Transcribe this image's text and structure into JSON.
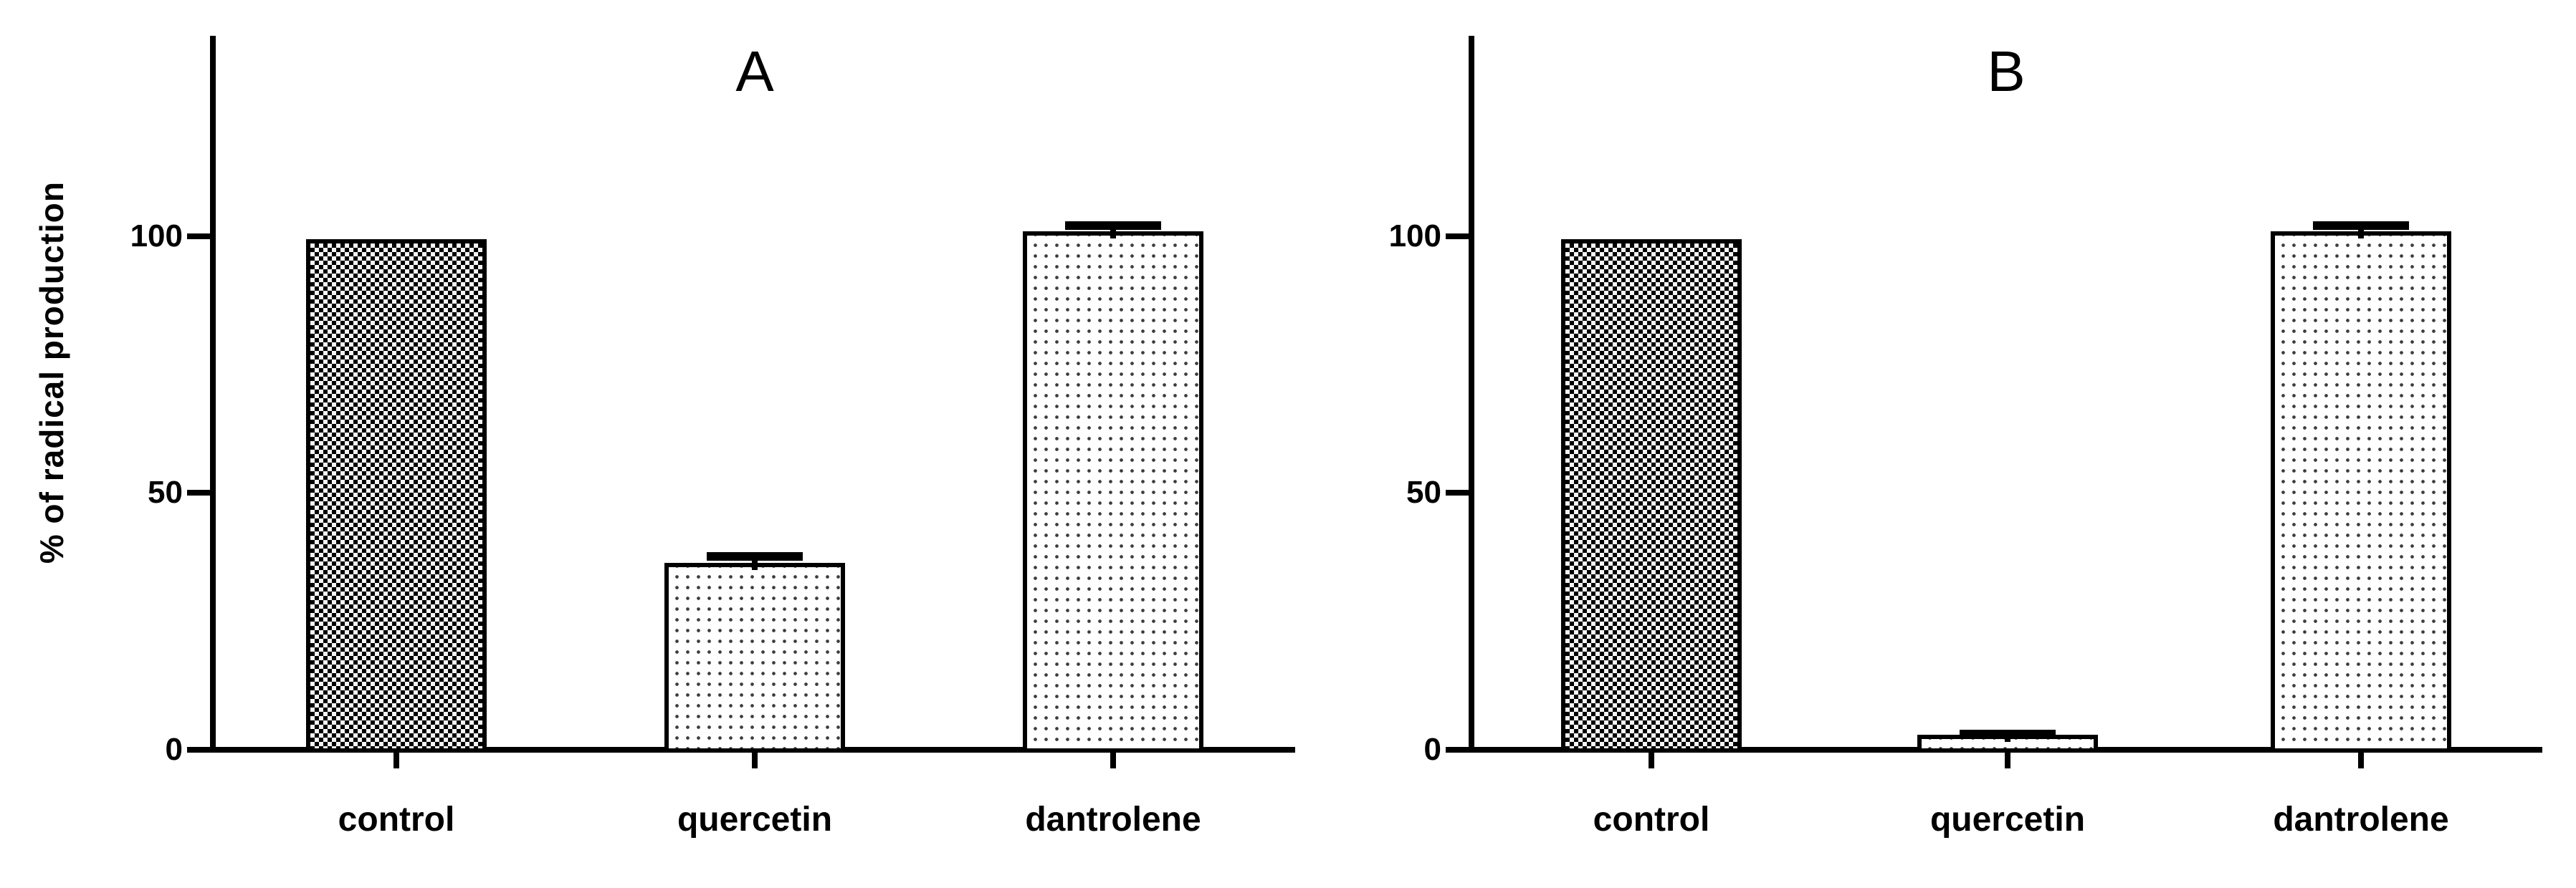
{
  "figure": {
    "background": "#ffffff",
    "ink_color": "#000000"
  },
  "chart_data": [
    {
      "type": "bar",
      "panel_label": "A",
      "categories": [
        "control",
        "quercetin",
        "dantrolene"
      ],
      "values": [
        100,
        37,
        101.5
      ],
      "errors": [
        0,
        2,
        2
      ],
      "error_style": "upper whisker with cap",
      "bar_patterns": [
        "checkerboard",
        "dots",
        "dots"
      ],
      "ylabel": "% of radical production",
      "xlabel": "",
      "yticks": [
        0,
        50,
        100
      ],
      "ylim": [
        0,
        140
      ],
      "grid": false,
      "legend": false
    },
    {
      "type": "bar",
      "panel_label": "B",
      "categories": [
        "control",
        "quercetin",
        "dantrolene"
      ],
      "values": [
        100,
        3.5,
        101.5
      ],
      "errors": [
        0,
        1,
        2
      ],
      "error_style": "upper whisker with cap",
      "bar_patterns": [
        "checkerboard",
        "dots",
        "dots"
      ],
      "ylabel": "% of radical production",
      "xlabel": "",
      "yticks": [
        0,
        50,
        100
      ],
      "ylim": [
        0,
        140
      ],
      "grid": false,
      "legend": false
    }
  ]
}
